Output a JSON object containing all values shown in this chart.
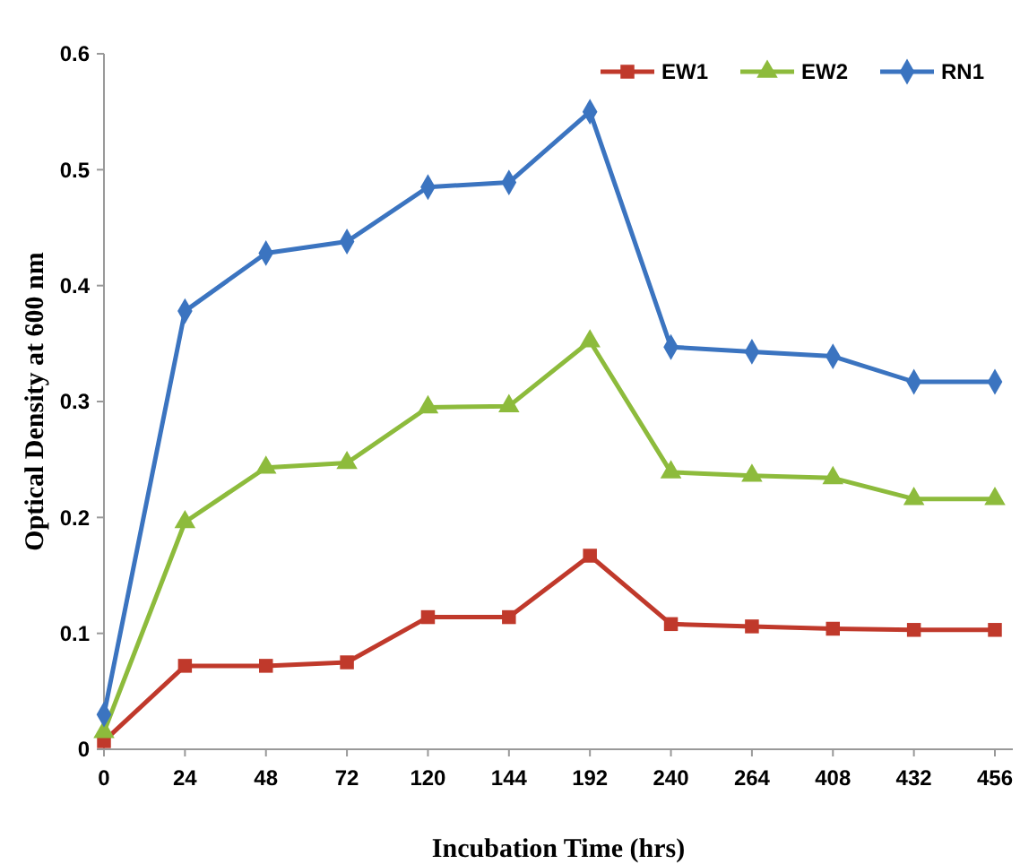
{
  "chart_data": {
    "type": "line",
    "xlabel": "Incubation Time (hrs)",
    "ylabel": "Optical Density at 600 nm",
    "categories": [
      "0",
      "24",
      "48",
      "72",
      "120",
      "144",
      "192",
      "240",
      "264",
      "408",
      "432",
      "456"
    ],
    "ylim": [
      0,
      0.6
    ],
    "yticks": [
      0,
      0.1,
      0.2,
      0.3,
      0.4,
      0.5,
      0.6
    ],
    "grid": false,
    "legend": "top right",
    "series": [
      {
        "name": "EW1",
        "color": "#c0392b",
        "marker": "square",
        "values": [
          0.007,
          0.072,
          0.072,
          0.075,
          0.114,
          0.114,
          0.167,
          0.108,
          0.106,
          0.104,
          0.103,
          0.103
        ]
      },
      {
        "name": "EW2",
        "color": "#8dbb3c",
        "marker": "triangle",
        "values": [
          0.015,
          0.196,
          0.243,
          0.247,
          0.295,
          0.296,
          0.352,
          0.239,
          0.236,
          0.234,
          0.216,
          0.216
        ]
      },
      {
        "name": "RN1",
        "color": "#3b74c0",
        "marker": "diamond",
        "values": [
          0.03,
          0.378,
          0.428,
          0.438,
          0.485,
          0.489,
          0.55,
          0.347,
          0.343,
          0.339,
          0.317,
          0.317
        ]
      }
    ]
  }
}
